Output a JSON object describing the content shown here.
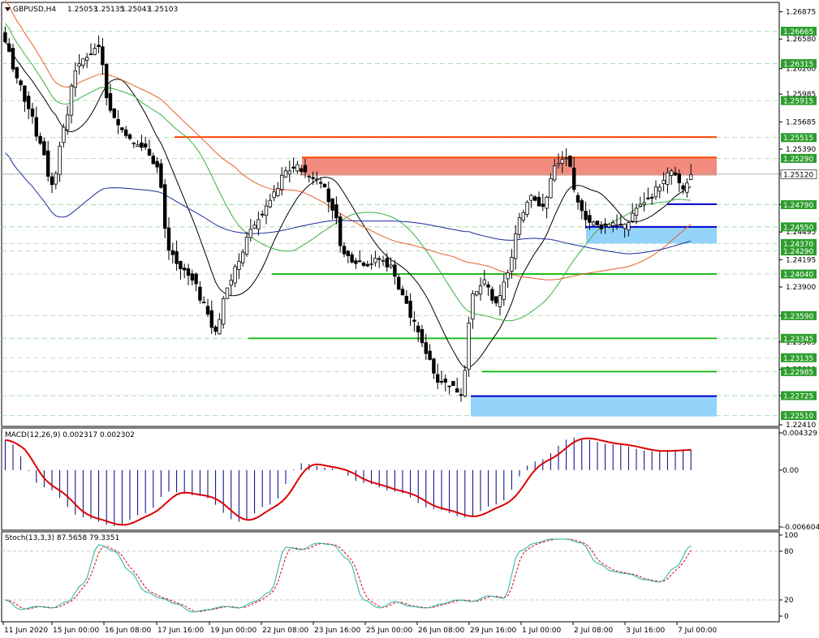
{
  "header": {
    "symbol": "GBPUSD,H4",
    "open": "1.25053",
    "high": "1.25135",
    "low": "1.25043",
    "close": "1.25103"
  },
  "chart_data": [
    {
      "type": "candlestick",
      "timeframe": "H4",
      "ylim": [
        1.2241,
        1.2695
      ],
      "price_axis_ticks": [
        "1.26875",
        "1.26580",
        "1.26260",
        "1.25985",
        "1.25685",
        "1.25390",
        "1.25120",
        "1.24790",
        "1.24495",
        "1.24195",
        "1.23900",
        "1.23590",
        "1.23305",
        "1.23010",
        "1.22725",
        "1.22410"
      ],
      "time_axis_labels": [
        "11 Jun 2020",
        "15 Jun 00:00",
        "16 Jun 08:00",
        "17 Jun 16:00",
        "19 Jun 00:00",
        "22 Jun 08:00",
        "23 Jun 16:00",
        "25 Jun 00:00",
        "26 Jun 08:00",
        "29 Jun 16:00",
        "1 Jul 00:00",
        "2 Jul 08:00",
        "3 Jul 16:00",
        "7 Jul 00:00"
      ],
      "level_labels": [
        {
          "value": "1.26665",
          "color": "#2e9e2e"
        },
        {
          "value": "1.26315",
          "color": "#2e9e2e"
        },
        {
          "value": "1.25915",
          "color": "#2e9e2e"
        },
        {
          "value": "1.25515",
          "color": "#2e9e2e"
        },
        {
          "value": "1.25290",
          "color": "#2e9e2e"
        },
        {
          "value": "1.25120",
          "color": "#000000"
        },
        {
          "value": "1.24790",
          "color": "#2e9e2e"
        },
        {
          "value": "1.24550",
          "color": "#2e9e2e"
        },
        {
          "value": "1.24370",
          "color": "#2e9e2e"
        },
        {
          "value": "1.24290",
          "color": "#2e9e2e"
        },
        {
          "value": "1.24040",
          "color": "#2e9e2e"
        },
        {
          "value": "1.23590",
          "color": "#2e9e2e"
        },
        {
          "value": "1.23345",
          "color": "#2e9e2e"
        },
        {
          "value": "1.23135",
          "color": "#2e9e2e"
        },
        {
          "value": "1.22985",
          "color": "#2e9e2e"
        },
        {
          "value": "1.22725",
          "color": "#2e9e2e"
        },
        {
          "value": "1.22510",
          "color": "#2e9e2e"
        }
      ],
      "zones": [
        {
          "name": "resistance-zone",
          "from": 1.25105,
          "to": 1.25305,
          "color": "#f08070"
        },
        {
          "name": "support-zone-upper",
          "from": 1.2437,
          "to": 1.2455,
          "color": "#87cefa"
        },
        {
          "name": "support-zone-lower",
          "from": 1.225,
          "to": 1.2272,
          "color": "#87cefa"
        }
      ],
      "horizontal_lines": [
        {
          "value": 1.2552,
          "color": "#ff4500"
        },
        {
          "value": 1.253,
          "color": "#ff4500"
        },
        {
          "value": 1.24795,
          "color": "#0000cc"
        },
        {
          "value": 1.2455,
          "color": "#0000cc"
        },
        {
          "value": 1.2404,
          "color": "#22bb22"
        },
        {
          "value": 1.23345,
          "color": "#22bb22"
        },
        {
          "value": 1.22985,
          "color": "#22bb22"
        },
        {
          "value": 1.2272,
          "color": "#0000cc"
        }
      ],
      "close_anchors": [
        [
          0,
          1.2655
        ],
        [
          3,
          1.2615
        ],
        [
          6,
          1.2585
        ],
        [
          9,
          1.2545
        ],
        [
          12,
          1.25
        ],
        [
          15,
          1.256
        ],
        [
          18,
          1.2625
        ],
        [
          21,
          1.264
        ],
        [
          24,
          1.265
        ],
        [
          27,
          1.258
        ],
        [
          30,
          1.256
        ],
        [
          33,
          1.2545
        ],
        [
          36,
          1.254
        ],
        [
          39,
          1.252
        ],
        [
          42,
          1.243
        ],
        [
          45,
          1.241
        ],
        [
          48,
          1.24
        ],
        [
          51,
          1.237
        ],
        [
          54,
          1.234
        ],
        [
          57,
          1.239
        ],
        [
          60,
          1.242
        ],
        [
          63,
          1.245
        ],
        [
          66,
          1.247
        ],
        [
          69,
          1.249
        ],
        [
          72,
          1.2515
        ],
        [
          75,
          1.252
        ],
        [
          78,
          1.251
        ],
        [
          81,
          1.2505
        ],
        [
          84,
          1.2475
        ],
        [
          87,
          1.2425
        ],
        [
          90,
          1.2418
        ],
        [
          93,
          1.2415
        ],
        [
          96,
          1.242
        ],
        [
          99,
          1.2412
        ],
        [
          102,
          1.238
        ],
        [
          105,
          1.235
        ],
        [
          108,
          1.232
        ],
        [
          111,
          1.229
        ],
        [
          114,
          1.2285
        ],
        [
          117,
          1.2275
        ],
        [
          120,
          1.238
        ],
        [
          123,
          1.2395
        ],
        [
          126,
          1.237
        ],
        [
          129,
          1.2405
        ],
        [
          132,
          1.2465
        ],
        [
          135,
          1.249
        ],
        [
          138,
          1.2475
        ],
        [
          141,
          1.252
        ],
        [
          144,
          1.253
        ],
        [
          147,
          1.248
        ],
        [
          150,
          1.246
        ],
        [
          153,
          1.2455
        ],
        [
          156,
          1.246
        ],
        [
          159,
          1.2455
        ],
        [
          162,
          1.2475
        ],
        [
          165,
          1.2485
        ],
        [
          168,
          1.25
        ],
        [
          171,
          1.2515
        ],
        [
          174,
          1.2495
        ],
        [
          176,
          1.251
        ]
      ],
      "moving_averages": [
        {
          "name": "black",
          "color": "#000000"
        },
        {
          "name": "green",
          "color": "#3cb043"
        },
        {
          "name": "orange",
          "color": "#e8602a"
        },
        {
          "name": "blue",
          "color": "#1a2a9e"
        }
      ]
    },
    {
      "type": "histogram+line",
      "label": "MACD(12,26,9) 0.002317 0.002302",
      "ylim": [
        -0.006604,
        0.004329
      ],
      "ticks": [
        "0.004329",
        "0.00",
        "-0.006604"
      ],
      "signal_color": "#dd0000",
      "hist_color": "#000080",
      "macd_anchors": [
        [
          0,
          0.0035
        ],
        [
          10,
          -0.002
        ],
        [
          20,
          -0.0055
        ],
        [
          28,
          -0.0065
        ],
        [
          36,
          -0.005
        ],
        [
          42,
          -0.0025
        ],
        [
          50,
          -0.003
        ],
        [
          60,
          -0.006
        ],
        [
          68,
          -0.004
        ],
        [
          76,
          0.0008
        ],
        [
          84,
          0.0002
        ],
        [
          92,
          -0.0015
        ],
        [
          100,
          -0.0025
        ],
        [
          110,
          -0.0045
        ],
        [
          118,
          -0.0055
        ],
        [
          126,
          -0.004
        ],
        [
          136,
          0.001
        ],
        [
          146,
          0.0038
        ],
        [
          156,
          0.003
        ],
        [
          166,
          0.0022
        ],
        [
          176,
          0.0024
        ]
      ]
    },
    {
      "type": "line",
      "label": "Stoch(13,3,3) 87.5658 79.3351",
      "ylim": [
        0,
        100
      ],
      "ticks": [
        "100",
        "80",
        "20",
        "0"
      ],
      "main_color": "#20b2aa",
      "signal_color": "#dd0000",
      "main_anchors": [
        [
          0,
          20
        ],
        [
          4,
          8
        ],
        [
          8,
          12
        ],
        [
          12,
          10
        ],
        [
          16,
          18
        ],
        [
          20,
          40
        ],
        [
          24,
          88
        ],
        [
          28,
          80
        ],
        [
          32,
          55
        ],
        [
          36,
          30
        ],
        [
          40,
          22
        ],
        [
          44,
          15
        ],
        [
          48,
          5
        ],
        [
          52,
          8
        ],
        [
          56,
          12
        ],
        [
          60,
          10
        ],
        [
          64,
          18
        ],
        [
          68,
          30
        ],
        [
          72,
          85
        ],
        [
          76,
          82
        ],
        [
          80,
          90
        ],
        [
          84,
          88
        ],
        [
          88,
          70
        ],
        [
          92,
          20
        ],
        [
          96,
          10
        ],
        [
          100,
          18
        ],
        [
          104,
          12
        ],
        [
          108,
          10
        ],
        [
          112,
          15
        ],
        [
          116,
          20
        ],
        [
          120,
          18
        ],
        [
          124,
          25
        ],
        [
          128,
          22
        ],
        [
          132,
          80
        ],
        [
          136,
          90
        ],
        [
          140,
          95
        ],
        [
          144,
          95
        ],
        [
          148,
          90
        ],
        [
          152,
          65
        ],
        [
          156,
          55
        ],
        [
          160,
          52
        ],
        [
          164,
          45
        ],
        [
          168,
          42
        ],
        [
          172,
          60
        ],
        [
          176,
          87
        ]
      ]
    }
  ]
}
